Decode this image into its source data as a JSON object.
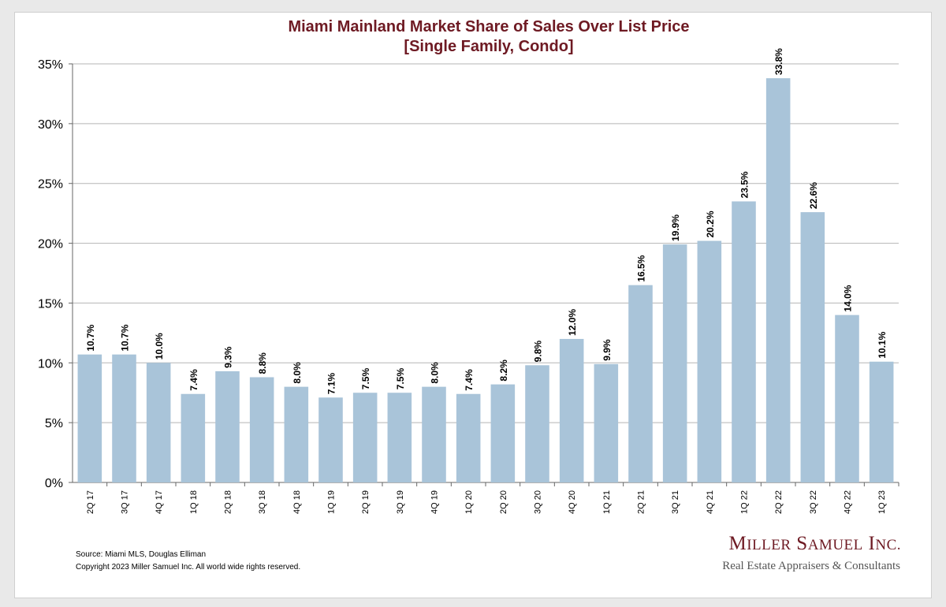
{
  "chart_data": {
    "type": "bar",
    "title": "Miami Mainland Market Share of Sales Over List Price",
    "subtitle": "[Single Family, Condo]",
    "categories": [
      "2Q 17",
      "3Q 17",
      "4Q 17",
      "1Q 18",
      "2Q 18",
      "3Q 18",
      "4Q 18",
      "1Q 19",
      "2Q 19",
      "3Q 19",
      "4Q 19",
      "1Q 20",
      "2Q 20",
      "3Q 20",
      "4Q 20",
      "1Q 21",
      "2Q 21",
      "3Q 21",
      "4Q 21",
      "1Q 22",
      "2Q 22",
      "3Q 22",
      "4Q 22",
      "1Q 23"
    ],
    "values": [
      10.7,
      10.7,
      10.0,
      7.4,
      9.3,
      8.8,
      8.0,
      7.1,
      7.5,
      7.5,
      8.0,
      7.4,
      8.2,
      9.8,
      12.0,
      9.9,
      16.5,
      19.9,
      20.2,
      23.5,
      33.8,
      22.6,
      14.0,
      10.1
    ],
    "value_labels": [
      "10.7%",
      "10.7%",
      "10.0%",
      "7.4%",
      "9.3%",
      "8.8%",
      "8.0%",
      "7.1%",
      "7.5%",
      "7.5%",
      "8.0%",
      "7.4%",
      "8.2%",
      "9.8%",
      "12.0%",
      "9.9%",
      "16.5%",
      "19.9%",
      "20.2%",
      "23.5%",
      "33.8%",
      "22.6%",
      "14.0%",
      "10.1%"
    ],
    "y_ticks": [
      "0%",
      "5%",
      "10%",
      "15%",
      "20%",
      "25%",
      "30%",
      "35%"
    ],
    "ylim": [
      0,
      35
    ],
    "xlabel": "",
    "ylabel": "",
    "grid": true,
    "legend": "none",
    "colors": {
      "bar": "#a9c4d9",
      "grid": "#b5b5b5",
      "title": "#6e1a23"
    }
  },
  "footer": {
    "source": "Source: Miami MLS, Douglas Elliman",
    "copyright": "Copyright 2023 Miller Samuel Inc.  All world wide rights reserved."
  },
  "brand": {
    "name_first_initial": "M",
    "name_first_rest": "ILLER",
    "name_second_initial": "S",
    "name_second_rest": "AMUEL",
    "name_third_initial": "I",
    "name_third_rest": "NC.",
    "tagline": "Real Estate Appraisers & Consultants"
  }
}
